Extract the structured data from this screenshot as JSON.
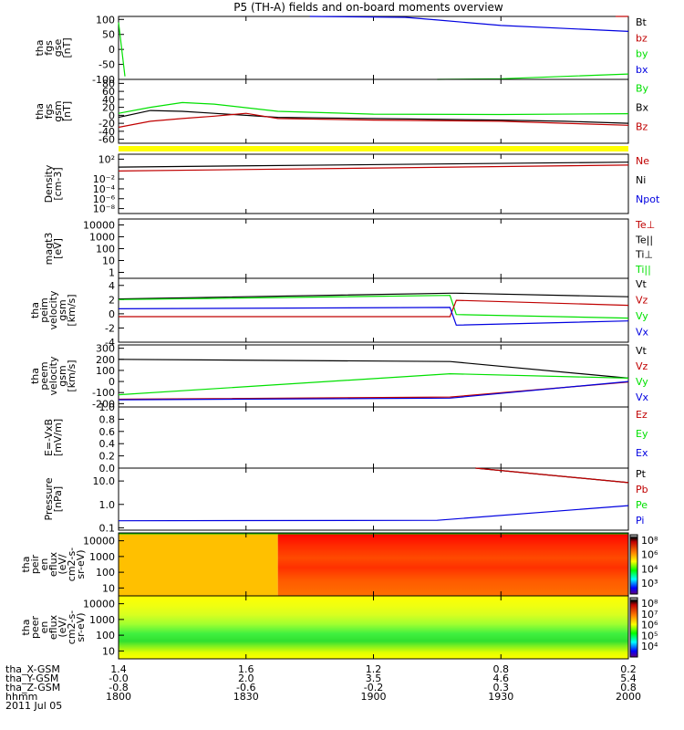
{
  "title": "P5 (TH-A) fields and on-board moments overview",
  "colors": {
    "black": "#000000",
    "red": "#c00000",
    "green": "#00e000",
    "blue": "#0000e0",
    "yellow": "#ffff00"
  },
  "chart_data": [
    {
      "id": "fgs_gse",
      "type": "line",
      "ylabel": [
        "tha",
        "fgs",
        "gse",
        "[nT]"
      ],
      "ylim": [
        -100,
        110
      ],
      "yticks": [
        "100",
        "50",
        "0",
        "-50",
        "-100"
      ],
      "ytick_values": [
        100,
        50,
        0,
        -50,
        -100
      ],
      "legend": [
        {
          "name": "Bt",
          "color": "#000000"
        },
        {
          "name": "bz",
          "color": "#c00000"
        },
        {
          "name": "by",
          "color": "#00e000"
        },
        {
          "name": "bx",
          "color": "#0000e0"
        }
      ],
      "series": [
        {
          "name": "bx",
          "color": "#0000e0",
          "x": [
            1830,
            1845,
            1850,
            1860,
            1880
          ],
          "y": [
            110,
            107,
            98,
            80,
            60
          ]
        },
        {
          "name": "by",
          "color": "#00e000",
          "x": [
            1800,
            1801
          ],
          "y": [
            90,
            -90
          ]
        },
        {
          "name": "by_late",
          "color": "#00e000",
          "x": [
            1850,
            1860,
            1880
          ],
          "y": [
            -100,
            -98,
            -82
          ]
        },
        {
          "name": "bz",
          "color": "#c00000",
          "x": [
            1878,
            1880
          ],
          "y": [
            110,
            110
          ]
        }
      ]
    },
    {
      "id": "fgs_gsm",
      "type": "line",
      "ylabel": [
        "tha",
        "fgs",
        "gsm",
        "[nT]"
      ],
      "ylim": [
        -70,
        90
      ],
      "yticks": [
        "80",
        "60",
        "40",
        "20",
        "0",
        "-20",
        "-40",
        "-60"
      ],
      "ytick_values": [
        80,
        60,
        40,
        20,
        0,
        -20,
        -40,
        -60
      ],
      "legend": [
        {
          "name": "By",
          "color": "#00e000"
        },
        {
          "name": "Bx",
          "color": "#000000"
        },
        {
          "name": "Bz",
          "color": "#c00000"
        }
      ],
      "series": [
        {
          "name": "By",
          "color": "#00e000",
          "x": [
            1800,
            1805,
            1810,
            1815,
            1825,
            1840,
            1860,
            1880
          ],
          "y": [
            5,
            20,
            32,
            28,
            10,
            3,
            2,
            4
          ]
        },
        {
          "name": "Bx",
          "color": "#000000",
          "x": [
            1800,
            1805,
            1810,
            1815,
            1825,
            1840,
            1860,
            1870,
            1880
          ],
          "y": [
            -5,
            12,
            10,
            5,
            -5,
            -8,
            -12,
            -15,
            -20
          ]
        },
        {
          "name": "Bz",
          "color": "#c00000",
          "x": [
            1800,
            1805,
            1810,
            1815,
            1820,
            1825,
            1840,
            1860,
            1870,
            1880
          ],
          "y": [
            -30,
            -15,
            -8,
            -2,
            5,
            -8,
            -12,
            -15,
            -20,
            -25
          ]
        }
      ]
    },
    {
      "id": "density",
      "type": "line",
      "log": true,
      "ylabel": [
        "Density",
        "[cm-3]"
      ],
      "ylim_exp": [
        -9,
        3
      ],
      "yticks": [
        "10²",
        "10⁻²",
        "10⁻⁴",
        "10⁻⁶",
        "10⁻⁸"
      ],
      "ytick_exps": [
        2,
        -2,
        -4,
        -6,
        -8
      ],
      "legend": [
        {
          "name": "Ne",
          "color": "#c00000"
        },
        {
          "name": "Ni",
          "color": "#000000"
        },
        {
          "name": "Npot",
          "color": "#0000e0"
        }
      ],
      "series": [
        {
          "name": "Ni",
          "color": "#000000",
          "x": [
            1800,
            1880
          ],
          "y_exp": [
            0.4,
            1.4
          ]
        },
        {
          "name": "Ne",
          "color": "#c00000",
          "x": [
            1800,
            1880
          ],
          "y_exp": [
            -0.4,
            0.8
          ]
        }
      ]
    },
    {
      "id": "temperature",
      "type": "line",
      "ylabel": [
        "magt3",
        "[eV]"
      ],
      "yticks": [
        "10000",
        "1000",
        "100",
        "10",
        "1"
      ],
      "legend": [
        {
          "name": "Te⊥",
          "color": "#c00000"
        },
        {
          "name": "Te||",
          "color": "#000000"
        },
        {
          "name": "Ti⊥",
          "color": "#000000"
        },
        {
          "name": "Ti||",
          "color": "#00e000"
        }
      ]
    },
    {
      "id": "peim_velocity",
      "type": "line",
      "ylabel": [
        "tha",
        "peim",
        "velocity",
        "gsm",
        "[km/s]"
      ],
      "ylim": [
        -4,
        5
      ],
      "yticks": [
        "4",
        "2",
        "0",
        "-2",
        "-4"
      ],
      "ytick_values": [
        4,
        2,
        0,
        -2,
        -4
      ],
      "legend": [
        {
          "name": "Vt",
          "color": "#000000"
        },
        {
          "name": "Vz",
          "color": "#c00000"
        },
        {
          "name": "Vy",
          "color": "#00e000"
        },
        {
          "name": "Vx",
          "color": "#0000e0"
        }
      ],
      "series": [
        {
          "name": "Vt",
          "color": "#000000",
          "x": [
            1800,
            1852,
            1853,
            1880
          ],
          "y": [
            2.1,
            2.9,
            2.9,
            2.4
          ]
        },
        {
          "name": "Vy",
          "color": "#00e000",
          "x": [
            1800,
            1852,
            1853,
            1880
          ],
          "y": [
            2.0,
            2.6,
            -0.1,
            -0.6
          ]
        },
        {
          "name": "Vz",
          "color": "#c00000",
          "x": [
            1800,
            1852,
            1853,
            1880
          ],
          "y": [
            -0.4,
            -0.4,
            1.9,
            1.2
          ]
        },
        {
          "name": "Vx",
          "color": "#0000e0",
          "x": [
            1800,
            1852,
            1853,
            1880
          ],
          "y": [
            0.7,
            0.9,
            -1.6,
            -1.0
          ]
        }
      ]
    },
    {
      "id": "peem_velocity",
      "type": "line",
      "ylabel": [
        "tha",
        "peem",
        "velocity",
        "gsm",
        "[km/s]"
      ],
      "ylim": [
        -230,
        330
      ],
      "yticks": [
        "300",
        "200",
        "100",
        "0",
        "-100",
        "-200"
      ],
      "ytick_values": [
        300,
        200,
        100,
        0,
        -100,
        -200
      ],
      "legend": [
        {
          "name": "Vt",
          "color": "#000000"
        },
        {
          "name": "Vz",
          "color": "#c00000"
        },
        {
          "name": "Vy",
          "color": "#00e000"
        },
        {
          "name": "Vx",
          "color": "#0000e0"
        }
      ],
      "series": [
        {
          "name": "Vt",
          "color": "#000000",
          "x": [
            1800,
            1852,
            1880
          ],
          "y": [
            200,
            180,
            30
          ]
        },
        {
          "name": "Vy",
          "color": "#00e000",
          "x": [
            1800,
            1852,
            1880
          ],
          "y": [
            -120,
            70,
            30
          ]
        },
        {
          "name": "Vz",
          "color": "#c00000",
          "x": [
            1800,
            1852,
            1880
          ],
          "y": [
            -160,
            -140,
            -5
          ]
        },
        {
          "name": "Vx",
          "color": "#0000e0",
          "x": [
            1800,
            1852,
            1880
          ],
          "y": [
            -165,
            -150,
            0
          ]
        }
      ]
    },
    {
      "id": "efield",
      "type": "line",
      "ylabel": [
        "E=-VxB",
        "[mV/m]"
      ],
      "ylim": [
        0,
        1.0
      ],
      "yticks": [
        "1.0",
        "0.8",
        "0.6",
        "0.4",
        "0.2",
        "0.0"
      ],
      "ytick_values": [
        1.0,
        0.8,
        0.6,
        0.4,
        0.2,
        0.0
      ],
      "legend": [
        {
          "name": "Ez",
          "color": "#c00000"
        },
        {
          "name": "Ey",
          "color": "#00e000"
        },
        {
          "name": "Ex",
          "color": "#0000e0"
        }
      ]
    },
    {
      "id": "pressure",
      "type": "line",
      "log": true,
      "ylabel": [
        "Pressure",
        "[nPa]"
      ],
      "ylim_exp": [
        -1.1,
        1.55
      ],
      "yticks": [
        "10.0",
        "1.0",
        "0.1"
      ],
      "ytick_exps": [
        1,
        0,
        -1
      ],
      "legend": [
        {
          "name": "Pt",
          "color": "#000000"
        },
        {
          "name": "Pb",
          "color": "#c00000"
        },
        {
          "name": "Pe",
          "color": "#00e000"
        },
        {
          "name": "Pi",
          "color": "#0000e0"
        }
      ],
      "series": [
        {
          "name": "Pt",
          "color": "#000000",
          "x": [
            1856,
            1880
          ],
          "y_exp": [
            1.55,
            0.93
          ]
        },
        {
          "name": "Pb",
          "color": "#c00000",
          "x": [
            1856,
            1880
          ],
          "y_exp": [
            1.55,
            0.93
          ]
        },
        {
          "name": "Pi",
          "color": "#0000e0",
          "x": [
            1800,
            1850,
            1880
          ],
          "y_exp": [
            -0.7,
            -0.68,
            -0.05
          ]
        }
      ]
    },
    {
      "id": "peir_eflux",
      "type": "heatmap",
      "ylabel": [
        "tha",
        "peir",
        "en",
        "eflux",
        "(eV/",
        "cm2-s-",
        "sr-eV)"
      ],
      "yticks": [
        "10000",
        "1000",
        "100",
        "10"
      ],
      "colorbar_ticks": [
        "10⁸",
        "10⁶",
        "10⁴",
        "10³"
      ],
      "color_left": "#ffc000",
      "color_right": "#ff3000",
      "switch_x": 1825
    },
    {
      "id": "peer_eflux",
      "type": "heatmap",
      "ylabel": [
        "tha",
        "peer",
        "en",
        "eflux",
        "(eV/",
        "cm2-s-",
        "sr-eV)"
      ],
      "yticks": [
        "10000",
        "1000",
        "100",
        "10"
      ],
      "colorbar_ticks": [
        "10⁸",
        "10⁷",
        "10⁶",
        "10⁵",
        "10⁴"
      ]
    }
  ],
  "xaxis": {
    "range": [
      1800,
      1880
    ],
    "ticks": [
      1800,
      1820,
      1840,
      1860,
      1880
    ],
    "rows": [
      {
        "label": "tha_X-GSM",
        "values": [
          "1.4",
          "1.6",
          "1.2",
          "0.8",
          "0.2"
        ]
      },
      {
        "label": "tha_Y-GSM",
        "values": [
          "-0.0",
          "2.0",
          "3.5",
          "4.6",
          "5.4"
        ]
      },
      {
        "label": "tha_Z-GSM",
        "values": [
          "-0.8",
          "-0.6",
          "-0.2",
          "0.3",
          "0.8"
        ]
      },
      {
        "label": "hhmm",
        "values": [
          "1800",
          "1830",
          "1900",
          "1930",
          "2000"
        ]
      }
    ],
    "date": "2011 Jul 05"
  }
}
